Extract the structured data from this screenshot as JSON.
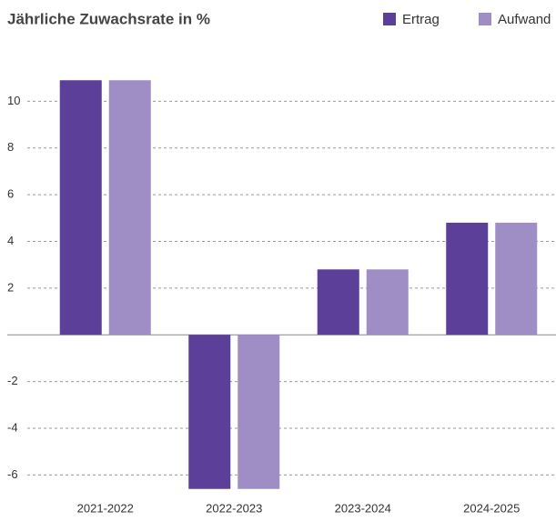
{
  "chart_data": {
    "type": "bar",
    "title": "Jährliche Zuwachsrate in %",
    "categories": [
      "2021-2022",
      "2022-2023",
      "2023-2024",
      "2024-2025"
    ],
    "series": [
      {
        "name": "Ertrag",
        "color": "#5b3f99",
        "values": [
          10.9,
          -6.6,
          2.8,
          4.8
        ]
      },
      {
        "name": "Aufwand",
        "color": "#9f8ec6",
        "values": [
          10.9,
          -6.6,
          2.8,
          4.8
        ]
      }
    ],
    "ylim": [
      -7,
      12
    ],
    "yticks": [
      -6,
      -4,
      -2,
      2,
      4,
      6,
      8,
      10
    ],
    "grid": true,
    "legend": "top-right"
  }
}
